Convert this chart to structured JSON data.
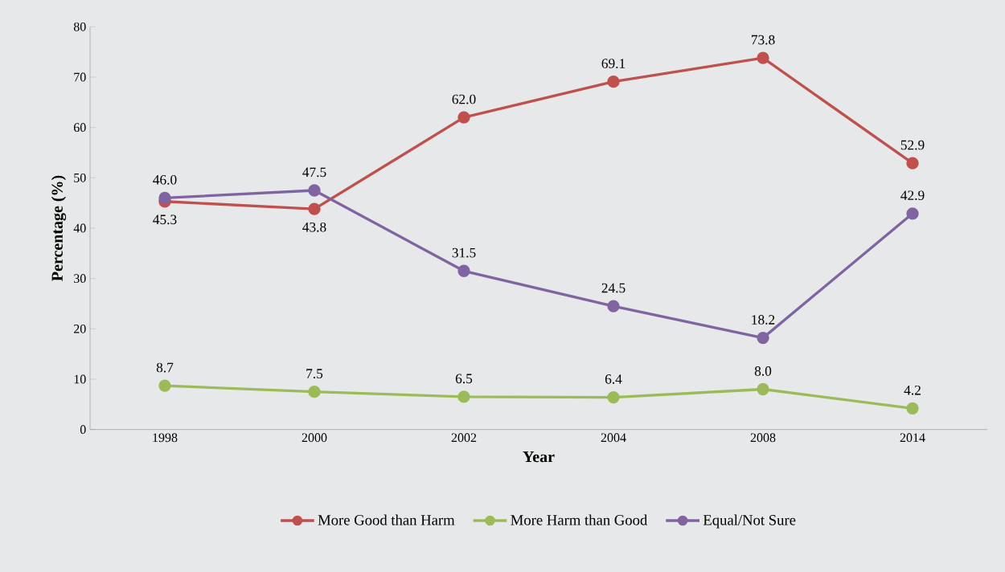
{
  "chart_data": {
    "type": "line",
    "xlabel": "Year",
    "ylabel": "Percentage (%)",
    "categories": [
      "1998",
      "2000",
      "2002",
      "2004",
      "2008",
      "2014"
    ],
    "series": [
      {
        "name": "More Good than Harm",
        "color": "#c0504d",
        "values": [
          45.3,
          43.8,
          62.0,
          69.1,
          73.8,
          52.9
        ],
        "value_labels": [
          "45.3",
          "43.8",
          "62.0",
          "69.1",
          "73.8",
          "52.9"
        ]
      },
      {
        "name": "More Harm than Good",
        "color": "#9bbb59",
        "values": [
          8.7,
          7.5,
          6.5,
          6.4,
          8.0,
          4.2
        ],
        "value_labels": [
          "8.7",
          "7.5",
          "6.5",
          "6.4",
          "8.0",
          "4.2"
        ]
      },
      {
        "name": "Equal/Not Sure",
        "color": "#8064a2",
        "values": [
          46.0,
          47.5,
          31.5,
          24.5,
          18.2,
          42.9
        ],
        "value_labels": [
          "46.0",
          "47.5",
          "31.5",
          "24.5",
          "18.2",
          "42.9"
        ]
      }
    ],
    "ylim": [
      0,
      80
    ],
    "yticks": [
      0,
      10,
      20,
      30,
      40,
      50,
      60,
      70,
      80
    ],
    "marker": "circle",
    "line_style": "solid",
    "legend": "bottom",
    "grid": false
  }
}
